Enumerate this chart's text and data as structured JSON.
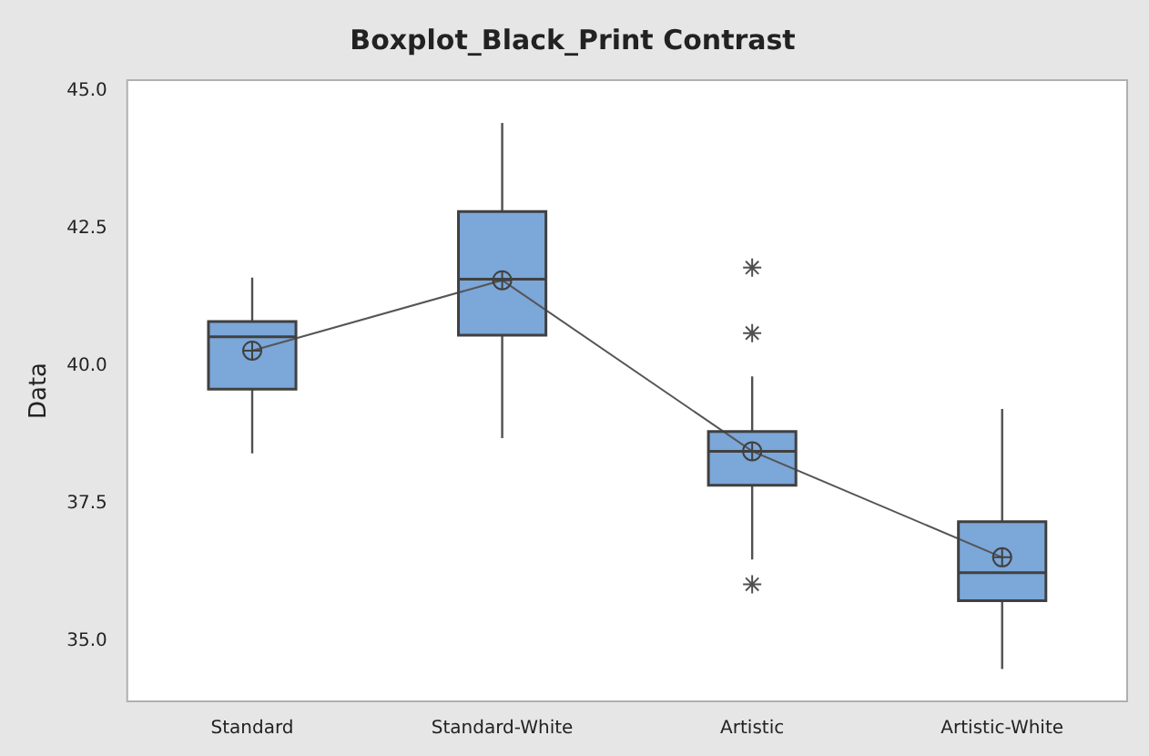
{
  "chart_data": {
    "type": "box",
    "title": "Boxplot_Black_Print Contrast",
    "ylabel": "Data",
    "categories": [
      "Standard",
      "Standard-White",
      "Artistic",
      "Artistic-White"
    ],
    "series": [
      {
        "color": "#7ba7d9",
        "boxes": [
          {
            "low": 38.41,
            "q1": 39.58,
            "median": 40.53,
            "q3": 40.81,
            "high": 41.61
          },
          {
            "low": 38.69,
            "q1": 40.56,
            "median": 41.58,
            "q3": 42.81,
            "high": 44.42
          },
          {
            "low": 36.48,
            "q1": 37.83,
            "median": 38.45,
            "q3": 38.81,
            "high": 39.81,
            "outliers": [
              41.79,
              40.6,
              36.03
            ]
          },
          {
            "low": 34.49,
            "q1": 35.73,
            "median": 36.24,
            "q3": 37.17,
            "high": 39.22
          }
        ]
      },
      {
        "type": "line",
        "color": "#555555",
        "marker": "circle",
        "values": [
          40.28,
          41.56,
          38.45,
          36.52
        ]
      }
    ],
    "ylim": [
      33.9,
      45.2
    ],
    "yticks": [
      {
        "value": 35,
        "label": "35.0"
      },
      {
        "value": 37.5,
        "label": "37.5"
      },
      {
        "value": 40,
        "label": "40.0"
      },
      {
        "value": 42.5,
        "label": "42.5"
      },
      {
        "value": 45,
        "label": "45.0"
      }
    ],
    "grid": false,
    "legend": false
  }
}
